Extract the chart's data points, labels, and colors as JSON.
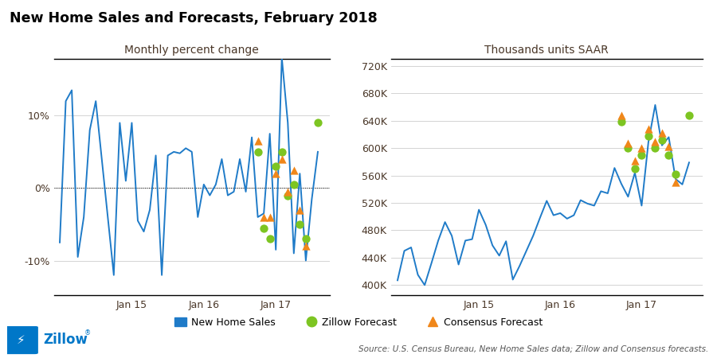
{
  "title": "New Home Sales and Forecasts, February 2018",
  "left_subtitle": "Monthly percent change",
  "right_subtitle": "Thousands units SAAR",
  "blue_color": "#1F7BC8",
  "green_color": "#7DC522",
  "orange_color": "#F0871A",
  "background_color": "#FFFFFF",
  "text_color": "#4a3728",
  "left_ylim": [
    -0.148,
    0.178
  ],
  "left_yticks": [
    -0.1,
    0.0,
    0.1
  ],
  "left_ytick_labels": [
    "-10%",
    "0%",
    "10%"
  ],
  "right_ylim": [
    385000,
    730000
  ],
  "right_yticks": [
    400000,
    440000,
    480000,
    520000,
    560000,
    600000,
    640000,
    680000,
    720000
  ],
  "right_ytick_labels": [
    "400K",
    "440K",
    "480K",
    "520K",
    "560K",
    "600K",
    "640K",
    "680K",
    "720K"
  ],
  "source_text": "Source: U.S. Census Bureau, New Home Sales data; Zillow and Consensus forecasts.",
  "legend_items": [
    "New Home Sales",
    "Zillow Forecast",
    "Consensus Forecast"
  ],
  "jan15_idx": 12,
  "jan16_idx": 24,
  "jan17_idx": 36,
  "jan18_idx": 48,
  "left_line_data": [
    -0.075,
    0.12,
    0.135,
    -0.095,
    -0.04,
    0.08,
    0.12,
    0.04,
    -0.04,
    -0.12,
    0.09,
    0.01,
    0.09,
    -0.045,
    -0.06,
    -0.03,
    0.045,
    -0.12,
    0.045,
    0.05,
    0.048,
    0.055,
    0.05,
    -0.04,
    0.005,
    -0.01,
    0.005,
    0.04,
    -0.01,
    -0.005,
    0.04,
    -0.005,
    0.07,
    -0.04,
    -0.035,
    0.075,
    -0.085,
    0.18,
    0.09,
    -0.09,
    0.02,
    -0.1,
    -0.015,
    0.05
  ],
  "right_line_data": [
    407000,
    450000,
    455000,
    415000,
    400000,
    432000,
    465000,
    492000,
    472000,
    430000,
    465000,
    467000,
    510000,
    488000,
    458000,
    443000,
    464000,
    408000,
    428000,
    450000,
    472000,
    498000,
    523000,
    502000,
    505000,
    497000,
    502000,
    524000,
    519000,
    516000,
    537000,
    534000,
    571000,
    548000,
    529000,
    564000,
    516000,
    609000,
    663000,
    604000,
    616000,
    555000,
    547000,
    579000
  ],
  "left_scatter_x_zillow": [
    33,
    34,
    35,
    36,
    37,
    38,
    39,
    40,
    41,
    43
  ],
  "left_scatter_y_zillow": [
    0.05,
    -0.055,
    -0.07,
    0.03,
    0.05,
    -0.01,
    0.005,
    -0.05,
    -0.07,
    0.09
  ],
  "left_scatter_x_consensus": [
    33,
    34,
    35,
    36,
    37,
    38,
    39,
    40,
    41
  ],
  "left_scatter_y_consensus": [
    0.065,
    -0.04,
    -0.04,
    0.02,
    0.04,
    -0.005,
    0.025,
    -0.03,
    -0.08
  ],
  "right_scatter_x_zillow": [
    33,
    34,
    35,
    36,
    37,
    38,
    39,
    40,
    41,
    43
  ],
  "right_scatter_y_zillow": [
    638000,
    600000,
    570000,
    590000,
    618000,
    600000,
    612000,
    590000,
    562000,
    648000
  ],
  "right_scatter_x_consensus": [
    33,
    34,
    35,
    36,
    37,
    38,
    39,
    40,
    41
  ],
  "right_scatter_y_consensus": [
    648000,
    607000,
    582000,
    600000,
    628000,
    610000,
    622000,
    603000,
    550000
  ]
}
